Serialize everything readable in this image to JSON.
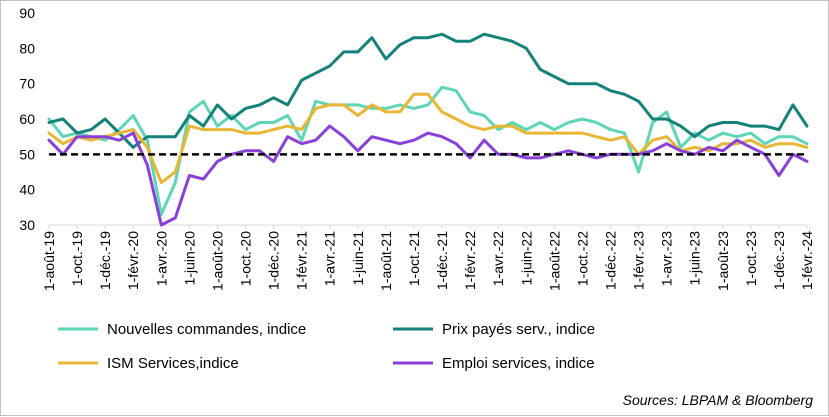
{
  "chart_data": {
    "type": "line",
    "title": "",
    "ylim": [
      30,
      90
    ],
    "yticks": [
      30,
      40,
      50,
      60,
      70,
      80,
      90
    ],
    "reference_line": 50,
    "x_tick_labels": [
      "1-août-19",
      "1-oct.-19",
      "1-déc.-19",
      "1-févr.-20",
      "1-avr.-20",
      "1-juin-20",
      "1-août-20",
      "1-oct.-20",
      "1-déc.-20",
      "1-févr.-21",
      "1-avr.-21",
      "1-juin-21",
      "1-août-21",
      "1-oct.-21",
      "1-déc.-21",
      "1-févr.-22",
      "1-avr.-22",
      "1-juin-22",
      "1-août-22",
      "1-oct.-22",
      "1-déc.-22",
      "1-févr.-23",
      "1-avr.-23",
      "1-juin-23",
      "1-août-23",
      "1-oct.-23",
      "1-déc.-23",
      "1-févr.-24"
    ],
    "months": 55,
    "series": [
      {
        "name": "Nouvelles commandes, indice",
        "color": "#5ed6b6",
        "values": [
          60,
          55,
          56,
          55,
          54,
          57,
          61,
          54,
          33,
          42,
          62,
          65,
          58,
          61,
          57,
          59,
          59,
          61,
          54,
          65,
          64,
          64,
          64,
          63,
          63,
          64,
          63,
          64,
          69,
          68,
          62,
          61,
          57,
          59,
          57,
          59,
          57,
          59,
          60,
          59,
          57,
          56,
          45,
          59,
          62,
          52,
          56,
          54,
          56,
          55,
          56,
          53,
          55,
          55,
          53
        ]
      },
      {
        "name": "Prix payés serv., indice",
        "color": "#14827a",
        "values": [
          59,
          60,
          56,
          57,
          60,
          56,
          52,
          55,
          55,
          55,
          61,
          58,
          64,
          60,
          63,
          64,
          66,
          64,
          71,
          73,
          75,
          79,
          79,
          83,
          77,
          81,
          83,
          83,
          84,
          82,
          82,
          84,
          83,
          82,
          80,
          74,
          72,
          70,
          70,
          70,
          68,
          67,
          65,
          60,
          60,
          58,
          55,
          58,
          59,
          59,
          58,
          58,
          57,
          64,
          58
        ]
      },
      {
        "name": "ISM Services,indice",
        "color": "#e8b634",
        "values": [
          56,
          53,
          55,
          54,
          55,
          56,
          57,
          52,
          42,
          45,
          58,
          57,
          57,
          57,
          56,
          56,
          57,
          58,
          57,
          63,
          64,
          64,
          61,
          64,
          62,
          62,
          67,
          67,
          62,
          60,
          58,
          57,
          58,
          58,
          56,
          56,
          56,
          56,
          56,
          55,
          54,
          55,
          50,
          54,
          55,
          51,
          52,
          51,
          53,
          53,
          54,
          52,
          53,
          53,
          52
        ]
      },
      {
        "name": "Emploi services, indice",
        "color": "#8b3fd9",
        "values": [
          54,
          50,
          55,
          55,
          55,
          54,
          56,
          47,
          30,
          32,
          44,
          43,
          48,
          50,
          51,
          51,
          48,
          55,
          53,
          54,
          58,
          55,
          51,
          55,
          54,
          53,
          54,
          56,
          55,
          53,
          49,
          54,
          50,
          50,
          49,
          49,
          50,
          51,
          50,
          49,
          50,
          50,
          50,
          51,
          53,
          51,
          50,
          52,
          51,
          54,
          52,
          50,
          44,
          50,
          48
        ]
      }
    ]
  },
  "source_note": "Sources: LBPAM & Bloomberg"
}
